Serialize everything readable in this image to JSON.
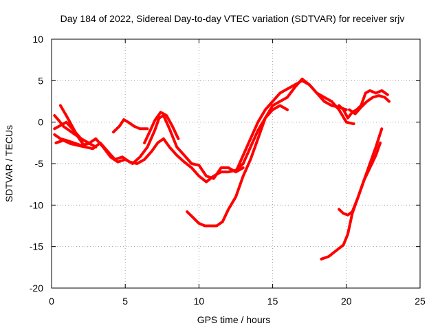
{
  "chart_data": {
    "type": "line",
    "title": "Day 184 of 2022, Sidereal Day-to-day VTEC variation (SDTVAR) for receiver srjv",
    "xlabel": "GPS time / hours",
    "ylabel": "SDTVAR / TECUs",
    "xlim": [
      0,
      25
    ],
    "ylim": [
      -20,
      10
    ],
    "xticks": [
      0,
      5,
      10,
      15,
      20,
      25
    ],
    "yticks": [
      -20,
      -15,
      -10,
      -5,
      0,
      5,
      10
    ],
    "grid": true,
    "color": "#ff0000",
    "series": [
      {
        "name": "s1",
        "x": [
          0.2,
          0.6,
          1.0,
          1.5,
          2.0,
          2.5,
          3.0,
          3.5,
          4.0,
          4.5,
          5.0,
          5.5,
          6.0,
          6.5,
          7.0,
          7.3,
          7.6,
          8.0,
          8.5,
          9.0,
          9.5,
          10.0,
          10.5,
          11.0,
          11.5,
          12.0,
          12.5,
          13.0
        ],
        "y": [
          -1.5,
          -2.0,
          -2.2,
          -2.5,
          -2.8,
          -2.6,
          -2.0,
          -3.0,
          -4.2,
          -4.8,
          -4.5,
          -5.0,
          -4.2,
          -3.0,
          -1.0,
          0.5,
          0.8,
          -0.8,
          -3.0,
          -4.0,
          -5.0,
          -5.2,
          -6.5,
          -6.8,
          -5.5,
          -5.5,
          -6.0,
          -5.5
        ]
      },
      {
        "name": "s2",
        "x": [
          0.3,
          0.8,
          1.3,
          1.8,
          2.3,
          2.8,
          3.3,
          3.8,
          4.3,
          4.8,
          5.3,
          5.8,
          6.3,
          6.8,
          7.2,
          7.6,
          8.0,
          8.5,
          9.0,
          9.5,
          10.0,
          10.5,
          11.0,
          11.5,
          12.0,
          12.5,
          13.0
        ],
        "y": [
          -2.5,
          -2.2,
          -2.6,
          -2.8,
          -3.0,
          -3.2,
          -2.5,
          -3.5,
          -4.5,
          -4.2,
          -4.8,
          -5.0,
          -4.5,
          -3.5,
          -2.5,
          -2.0,
          -3.0,
          -4.0,
          -4.8,
          -5.5,
          -6.5,
          -7.2,
          -6.5,
          -6.0,
          -6.0,
          -5.8,
          -5.0
        ]
      },
      {
        "name": "s3",
        "x": [
          0.2,
          0.5,
          0.8,
          1.2,
          1.6,
          2.0,
          2.5,
          3.0
        ],
        "y": [
          0.8,
          0.2,
          -0.5,
          -1.0,
          -1.5,
          -2.0,
          -2.5,
          -3.0
        ]
      },
      {
        "name": "s4",
        "x": [
          0.2,
          0.5,
          1.0,
          1.5,
          2.0,
          2.5,
          3.0
        ],
        "y": [
          -0.8,
          -0.5,
          0.0,
          -1.0,
          -2.0,
          -2.5,
          -3.0
        ]
      },
      {
        "name": "s5",
        "x": [
          0.6,
          1.0,
          1.4,
          1.8,
          2.2
        ],
        "y": [
          2.0,
          0.8,
          -0.5,
          -1.8,
          -2.8
        ]
      },
      {
        "name": "s6",
        "x": [
          4.2,
          4.6,
          4.9,
          5.2,
          5.6,
          6.0,
          6.5
        ],
        "y": [
          -1.2,
          -0.5,
          0.3,
          0.0,
          -0.5,
          -0.8,
          -0.8
        ]
      },
      {
        "name": "s7",
        "x": [
          6.3,
          6.7,
          7.0,
          7.4,
          7.8,
          8.2,
          8.6
        ],
        "y": [
          -2.5,
          -1.0,
          0.2,
          1.2,
          0.8,
          -0.5,
          -2.0
        ]
      },
      {
        "name": "s8",
        "x": [
          9.2,
          9.6,
          10.0,
          10.4,
          10.8,
          11.2,
          11.6
        ],
        "y": [
          -10.8,
          -11.5,
          -12.2,
          -12.5,
          -12.5,
          -12.5,
          -12.0
        ]
      },
      {
        "name": "s9",
        "x": [
          11.6,
          12.0,
          12.5,
          13.0,
          13.5,
          14.0,
          14.5,
          15.0,
          15.5,
          16.0,
          16.5,
          17.0,
          17.5,
          18.0,
          18.5,
          19.0,
          19.5,
          20.0,
          20.5
        ],
        "y": [
          -12.0,
          -10.5,
          -9.0,
          -6.5,
          -4.5,
          -2.0,
          0.5,
          2.0,
          2.5,
          3.0,
          4.2,
          5.2,
          4.5,
          3.5,
          3.0,
          2.5,
          1.5,
          0.0,
          -0.2
        ]
      },
      {
        "name": "s10",
        "x": [
          12.5,
          13.0,
          13.5,
          14.0,
          14.5,
          15.0,
          15.5,
          16.0,
          16.5,
          17.0,
          17.5,
          18.0,
          18.5,
          19.0,
          19.5,
          20.0
        ],
        "y": [
          -6.0,
          -4.0,
          -2.0,
          0.0,
          1.5,
          2.5,
          3.5,
          4.0,
          4.5,
          5.0,
          4.5,
          3.5,
          2.5,
          2.0,
          1.8,
          1.5
        ]
      },
      {
        "name": "s11",
        "x": [
          13.0,
          13.5,
          14.0,
          14.5,
          15.0,
          15.5,
          16.0
        ],
        "y": [
          -5.0,
          -3.0,
          -1.0,
          0.5,
          1.5,
          2.0,
          1.5
        ]
      },
      {
        "name": "s12",
        "x": [
          18.3,
          18.8,
          19.3,
          19.8,
          20.1,
          20.4,
          20.8,
          21.2,
          21.6,
          22.0,
          22.4
        ],
        "y": [
          -16.5,
          -16.2,
          -15.5,
          -14.8,
          -13.5,
          -11.0,
          -9.0,
          -7.0,
          -5.0,
          -3.0,
          -0.8
        ]
      },
      {
        "name": "s13",
        "x": [
          19.5,
          19.8,
          20.1,
          20.4,
          20.8,
          21.2,
          21.6,
          22.0,
          22.3
        ],
        "y": [
          -10.5,
          -11.0,
          -11.2,
          -10.8,
          -9.0,
          -7.0,
          -5.5,
          -4.0,
          -2.5
        ]
      },
      {
        "name": "s14",
        "x": [
          19.5,
          19.8,
          20.1,
          20.4,
          20.7,
          21.0,
          21.3,
          21.6,
          22.0,
          22.4,
          22.8
        ],
        "y": [
          2.0,
          1.5,
          0.5,
          1.2,
          1.5,
          2.0,
          3.5,
          3.8,
          3.5,
          3.8,
          3.3
        ]
      },
      {
        "name": "s15",
        "x": [
          20.2,
          20.6,
          21.0,
          21.4,
          21.8,
          22.2,
          22.6,
          22.9
        ],
        "y": [
          1.5,
          1.0,
          1.8,
          2.5,
          3.0,
          3.2,
          3.0,
          2.5
        ]
      }
    ]
  }
}
